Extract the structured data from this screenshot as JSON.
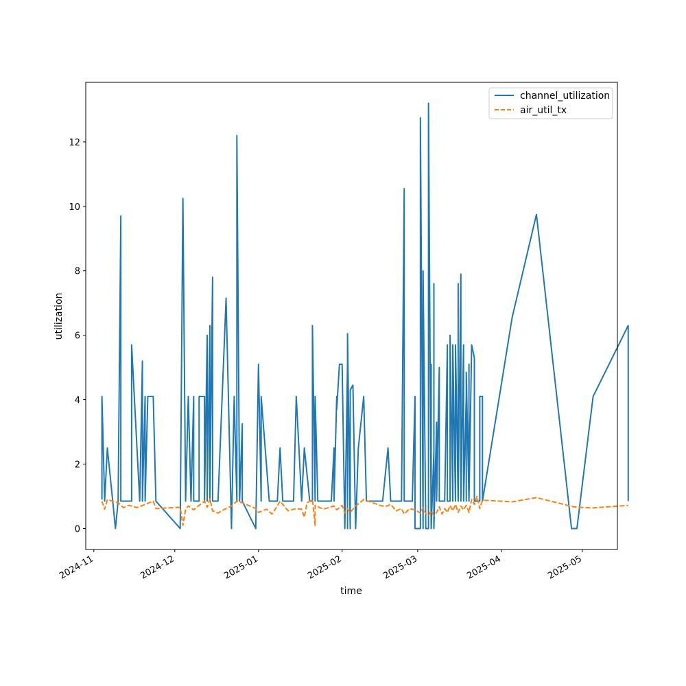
{
  "chart_data": {
    "type": "line",
    "xlabel": "time",
    "ylabel": "utilization",
    "x_axis_type": "date",
    "xlim": [
      "2024-10-29",
      "2025-05-14"
    ],
    "ylim": [
      -0.65,
      13.85
    ],
    "x_ticks": [
      "2024-11",
      "2024-12",
      "2025-01",
      "2025-02",
      "2025-03",
      "2025-04",
      "2025-05"
    ],
    "y_ticks": [
      0,
      2,
      4,
      6,
      8,
      10,
      12
    ],
    "grid": false,
    "legend_position": "top-right",
    "series": [
      {
        "name": "channel_utilization",
        "color": "#1f77b4",
        "dash": "solid",
        "points": [
          [
            "2024-11-04",
            0.9
          ],
          [
            "2024-11-04",
            4.1
          ],
          [
            "2024-11-05",
            0.85
          ],
          [
            "2024-11-06",
            2.5
          ],
          [
            "2024-11-08",
            0.85
          ],
          [
            "2024-11-09",
            0.0
          ],
          [
            "2024-11-10",
            0.85
          ],
          [
            "2024-11-11",
            9.7
          ],
          [
            "2024-11-11",
            0.85
          ],
          [
            "2024-11-15",
            0.85
          ],
          [
            "2024-11-15",
            5.7
          ],
          [
            "2024-11-18",
            0.85
          ],
          [
            "2024-11-19",
            5.2
          ],
          [
            "2024-11-19",
            0.85
          ],
          [
            "2024-11-20",
            4.1
          ],
          [
            "2024-11-20",
            0.85
          ],
          [
            "2024-11-21",
            4.1
          ],
          [
            "2024-11-23",
            4.1
          ],
          [
            "2024-11-24",
            0.85
          ],
          [
            "2024-12-03",
            0.0
          ],
          [
            "2024-12-04",
            10.25
          ],
          [
            "2024-12-05",
            0.85
          ],
          [
            "2024-12-06",
            4.1
          ],
          [
            "2024-12-07",
            0.85
          ],
          [
            "2024-12-08",
            4.1
          ],
          [
            "2024-12-08",
            0.85
          ],
          [
            "2024-12-10",
            0.85
          ],
          [
            "2024-12-10",
            4.1
          ],
          [
            "2024-12-12",
            4.1
          ],
          [
            "2024-12-12",
            0.85
          ],
          [
            "2024-12-13",
            6.0
          ],
          [
            "2024-12-13",
            0.85
          ],
          [
            "2024-12-14",
            6.3
          ],
          [
            "2024-12-14",
            0.85
          ],
          [
            "2024-12-15",
            7.8
          ],
          [
            "2024-12-15",
            0.85
          ],
          [
            "2024-12-17",
            0.85
          ],
          [
            "2024-12-20",
            7.15
          ],
          [
            "2024-12-22",
            0.0
          ],
          [
            "2024-12-23",
            4.1
          ],
          [
            "2024-12-24",
            0.85
          ],
          [
            "2024-12-24",
            12.2
          ],
          [
            "2024-12-25",
            0.85
          ],
          [
            "2024-12-26",
            3.25
          ],
          [
            "2024-12-26",
            0.85
          ],
          [
            "2024-12-31",
            0.0
          ],
          [
            "2025-01-01",
            5.1
          ],
          [
            "2025-01-02",
            0.85
          ],
          [
            "2025-01-02",
            4.1
          ],
          [
            "2025-01-05",
            0.85
          ],
          [
            "2025-01-08",
            0.85
          ],
          [
            "2025-01-09",
            2.5
          ],
          [
            "2025-01-10",
            0.85
          ],
          [
            "2025-01-14",
            0.85
          ],
          [
            "2025-01-15",
            4.1
          ],
          [
            "2025-01-17",
            0.85
          ],
          [
            "2025-01-18",
            2.5
          ],
          [
            "2025-01-20",
            0.85
          ],
          [
            "2025-01-21",
            0.85
          ],
          [
            "2025-01-21",
            6.3
          ],
          [
            "2025-01-22",
            0.85
          ],
          [
            "2025-01-22",
            4.1
          ],
          [
            "2025-01-23",
            0.85
          ],
          [
            "2025-01-28",
            0.85
          ],
          [
            "2025-01-29",
            2.5
          ],
          [
            "2025-01-29",
            0.85
          ],
          [
            "2025-01-30",
            4.1
          ],
          [
            "2025-01-30",
            3.7
          ],
          [
            "2025-01-31",
            5.1
          ],
          [
            "2025-02-01",
            5.1
          ],
          [
            "2025-02-02",
            0.0
          ],
          [
            "2025-02-03",
            5.1
          ],
          [
            "2025-02-03",
            0.0
          ],
          [
            "2025-02-03",
            6.05
          ],
          [
            "2025-02-04",
            0.0
          ],
          [
            "2025-02-04",
            4.3
          ],
          [
            "2025-02-05",
            4.45
          ],
          [
            "2025-02-06",
            0.0
          ],
          [
            "2025-02-07",
            2.5
          ],
          [
            "2025-02-09",
            4.1
          ],
          [
            "2025-02-10",
            0.85
          ],
          [
            "2025-02-16",
            0.85
          ],
          [
            "2025-02-18",
            2.5
          ],
          [
            "2025-02-19",
            0.85
          ],
          [
            "2025-02-23",
            0.85
          ],
          [
            "2025-02-24",
            10.55
          ],
          [
            "2025-02-24",
            0.85
          ],
          [
            "2025-02-27",
            0.85
          ],
          [
            "2025-02-28",
            4.1
          ],
          [
            "2025-02-28",
            0.0
          ],
          [
            "2025-03-02",
            0.0
          ],
          [
            "2025-03-02",
            12.75
          ],
          [
            "2025-03-03",
            0.0
          ],
          [
            "2025-03-03",
            8.0
          ],
          [
            "2025-03-04",
            0.0
          ],
          [
            "2025-03-05",
            0.0
          ],
          [
            "2025-03-05",
            3.5
          ],
          [
            "2025-03-05",
            0.0
          ],
          [
            "2025-03-05",
            13.2
          ],
          [
            "2025-03-06",
            0.0
          ],
          [
            "2025-03-06",
            5.1
          ],
          [
            "2025-03-06",
            0.0
          ],
          [
            "2025-03-07",
            2.4
          ],
          [
            "2025-03-07",
            0.0
          ],
          [
            "2025-03-07",
            7.6
          ],
          [
            "2025-03-07",
            0.0
          ],
          [
            "2025-03-08",
            3.3
          ],
          [
            "2025-03-08",
            0.85
          ],
          [
            "2025-03-09",
            5.0
          ],
          [
            "2025-03-09",
            0.85
          ],
          [
            "2025-03-11",
            0.85
          ],
          [
            "2025-03-12",
            5.7
          ],
          [
            "2025-03-12",
            0.85
          ],
          [
            "2025-03-13",
            0.85
          ],
          [
            "2025-03-13",
            6.0
          ],
          [
            "2025-03-14",
            0.85
          ],
          [
            "2025-03-14",
            5.7
          ],
          [
            "2025-03-15",
            0.85
          ],
          [
            "2025-03-15",
            5.7
          ],
          [
            "2025-03-16",
            0.85
          ],
          [
            "2025-03-16",
            7.6
          ],
          [
            "2025-03-16",
            0.85
          ],
          [
            "2025-03-17",
            7.9
          ],
          [
            "2025-03-17",
            0.85
          ],
          [
            "2025-03-18",
            5.7
          ],
          [
            "2025-03-18",
            0.85
          ],
          [
            "2025-03-19",
            4.1
          ],
          [
            "2025-03-19",
            0.85
          ],
          [
            "2025-03-19",
            4.85
          ],
          [
            "2025-03-20",
            0.85
          ],
          [
            "2025-03-20",
            5.1
          ],
          [
            "2025-03-20",
            0.85
          ],
          [
            "2025-03-21",
            5.7
          ],
          [
            "2025-03-22",
            5.3
          ],
          [
            "2025-03-22",
            0.85
          ],
          [
            "2025-03-23",
            0.85
          ],
          [
            "2025-03-24",
            0.85
          ],
          [
            "2025-03-24",
            4.1
          ],
          [
            "2025-03-25",
            4.1
          ],
          [
            "2025-03-25",
            0.85
          ],
          [
            "2025-04-05",
            6.55
          ],
          [
            "2025-04-14",
            9.75
          ],
          [
            "2025-04-27",
            0.0
          ],
          [
            "2025-04-29",
            0.0
          ],
          [
            "2025-05-05",
            4.1
          ],
          [
            "2025-05-18",
            6.3
          ],
          [
            "2025-05-18",
            0.85
          ]
        ]
      },
      {
        "name": "air_util_tx",
        "color": "#ff7f0e",
        "dash": "dashed",
        "points": [
          [
            "2024-11-04",
            0.85
          ],
          [
            "2024-11-05",
            0.6
          ],
          [
            "2024-11-06",
            0.9
          ],
          [
            "2024-11-10",
            0.8
          ],
          [
            "2024-11-12",
            0.65
          ],
          [
            "2024-11-14",
            0.72
          ],
          [
            "2024-11-17",
            0.65
          ],
          [
            "2024-11-20",
            0.75
          ],
          [
            "2024-11-23",
            0.85
          ],
          [
            "2024-11-24",
            0.62
          ],
          [
            "2024-12-03",
            0.66
          ],
          [
            "2024-12-04",
            0.1
          ],
          [
            "2024-12-05",
            0.6
          ],
          [
            "2024-12-06",
            0.7
          ],
          [
            "2024-12-08",
            0.58
          ],
          [
            "2024-12-10",
            0.72
          ],
          [
            "2024-12-12",
            0.85
          ],
          [
            "2024-12-13",
            0.66
          ],
          [
            "2024-12-14",
            0.92
          ],
          [
            "2024-12-15",
            0.55
          ],
          [
            "2024-12-17",
            0.48
          ],
          [
            "2024-12-19",
            0.58
          ],
          [
            "2024-12-22",
            0.7
          ],
          [
            "2024-12-24",
            0.85
          ],
          [
            "2024-12-26",
            0.8
          ],
          [
            "2024-12-31",
            0.62
          ],
          [
            "2025-01-01",
            0.5
          ],
          [
            "2025-01-04",
            0.6
          ],
          [
            "2025-01-06",
            0.45
          ],
          [
            "2025-01-08",
            0.7
          ],
          [
            "2025-01-09",
            0.85
          ],
          [
            "2025-01-12",
            0.55
          ],
          [
            "2025-01-15",
            0.62
          ],
          [
            "2025-01-17",
            0.6
          ],
          [
            "2025-01-18",
            0.35
          ],
          [
            "2025-01-19",
            0.8
          ],
          [
            "2025-01-21",
            0.9
          ],
          [
            "2025-01-22",
            0.1
          ],
          [
            "2025-01-22",
            0.72
          ],
          [
            "2025-01-25",
            0.6
          ],
          [
            "2025-01-29",
            0.7
          ],
          [
            "2025-01-30",
            0.58
          ],
          [
            "2025-02-01",
            0.72
          ],
          [
            "2025-02-02",
            0.48
          ],
          [
            "2025-02-03",
            0.62
          ],
          [
            "2025-02-04",
            0.5
          ],
          [
            "2025-02-06",
            0.7
          ],
          [
            "2025-02-09",
            0.9
          ],
          [
            "2025-02-15",
            0.72
          ],
          [
            "2025-02-17",
            0.68
          ],
          [
            "2025-02-19",
            0.75
          ],
          [
            "2025-02-21",
            0.55
          ],
          [
            "2025-02-23",
            0.62
          ],
          [
            "2025-02-24",
            0.45
          ],
          [
            "2025-02-26",
            0.62
          ],
          [
            "2025-02-28",
            0.58
          ],
          [
            "2025-03-02",
            0.48
          ],
          [
            "2025-03-03",
            0.65
          ],
          [
            "2025-03-04",
            0.45
          ],
          [
            "2025-03-05",
            0.4
          ],
          [
            "2025-03-06",
            0.55
          ],
          [
            "2025-03-07",
            0.4
          ],
          [
            "2025-03-08",
            0.5
          ],
          [
            "2025-03-09",
            0.68
          ],
          [
            "2025-03-10",
            0.45
          ],
          [
            "2025-03-11",
            0.62
          ],
          [
            "2025-03-12",
            0.5
          ],
          [
            "2025-03-13",
            0.72
          ],
          [
            "2025-03-14",
            0.55
          ],
          [
            "2025-03-15",
            0.75
          ],
          [
            "2025-03-16",
            0.5
          ],
          [
            "2025-03-17",
            0.7
          ],
          [
            "2025-03-18",
            0.58
          ],
          [
            "2025-03-19",
            0.72
          ],
          [
            "2025-03-20",
            0.5
          ],
          [
            "2025-03-21",
            0.9
          ],
          [
            "2025-03-22",
            0.75
          ],
          [
            "2025-03-23",
            1.0
          ],
          [
            "2025-03-24",
            0.62
          ],
          [
            "2025-03-25",
            0.88
          ],
          [
            "2025-04-05",
            0.83
          ],
          [
            "2025-04-14",
            0.96
          ],
          [
            "2025-04-28",
            0.67
          ],
          [
            "2025-05-05",
            0.64
          ],
          [
            "2025-05-18",
            0.72
          ]
        ]
      }
    ]
  }
}
